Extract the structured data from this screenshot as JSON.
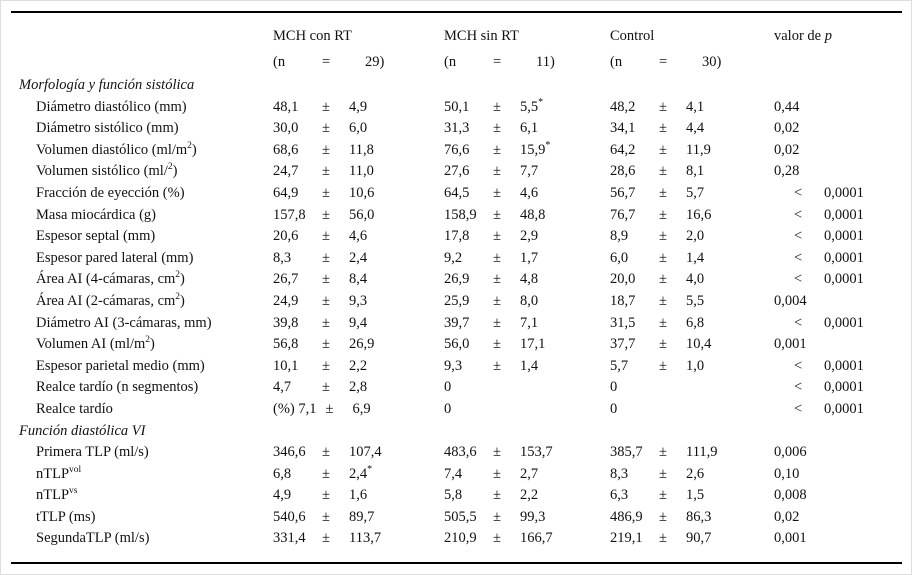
{
  "header": {
    "columns": [
      {
        "title": "MCH con RT",
        "n_open": "(n",
        "n_eq": "=",
        "n_val": "29)"
      },
      {
        "title": "MCH sin RT",
        "n_open": "(n",
        "n_eq": "=",
        "n_val": "11)"
      },
      {
        "title": "Control",
        "n_open": "(n",
        "n_eq": "=",
        "n_val": "30)"
      }
    ],
    "p_label_prefix": "valor de ",
    "p_label_italic": "p"
  },
  "table": {
    "rows": [
      {
        "type": "section",
        "label": "Morfología y función sistólica"
      },
      {
        "type": "data",
        "label": "Diámetro diastólico (mm)",
        "cells": [
          {
            "v1": "48,1",
            "pm": "±",
            "v2": "4,9",
            "sup": ""
          },
          {
            "v1": "50,1",
            "pm": "±",
            "v2": "5,5",
            "sup": "*"
          },
          {
            "v1": "48,2",
            "pm": "±",
            "v2": "4,1",
            "sup": ""
          }
        ],
        "p_lt": "",
        "p": "0,44"
      },
      {
        "type": "data",
        "label": "Diámetro sistólico (mm)",
        "cells": [
          {
            "v1": "30,0",
            "pm": "±",
            "v2": "6,0",
            "sup": ""
          },
          {
            "v1": "31,3",
            "pm": "±",
            "v2": "6,1",
            "sup": ""
          },
          {
            "v1": "34,1",
            "pm": "±",
            "v2": "4,4",
            "sup": ""
          }
        ],
        "p_lt": "",
        "p": "0,02"
      },
      {
        "type": "data",
        "label": "Volumen diastólico (ml/m^{2})",
        "cells": [
          {
            "v1": "68,6",
            "pm": "±",
            "v2": "11,8",
            "sup": ""
          },
          {
            "v1": "76,6",
            "pm": "±",
            "v2": "15,9",
            "sup": "*"
          },
          {
            "v1": "64,2",
            "pm": "±",
            "v2": "11,9",
            "sup": ""
          }
        ],
        "p_lt": "",
        "p": "0,02"
      },
      {
        "type": "data",
        "label": "Volumen sistólico (ml/^{2})",
        "cells": [
          {
            "v1": "24,7",
            "pm": "±",
            "v2": "11,0",
            "sup": ""
          },
          {
            "v1": "27,6",
            "pm": "±",
            "v2": "7,7",
            "sup": ""
          },
          {
            "v1": "28,6",
            "pm": "±",
            "v2": "8,1",
            "sup": ""
          }
        ],
        "p_lt": "",
        "p": "0,28"
      },
      {
        "type": "data",
        "label": "Fracción de eyección (%)",
        "cells": [
          {
            "v1": "64,9",
            "pm": "±",
            "v2": "10,6",
            "sup": ""
          },
          {
            "v1": "64,5",
            "pm": "±",
            "v2": "4,6",
            "sup": ""
          },
          {
            "v1": "56,7",
            "pm": "±",
            "v2": "5,7",
            "sup": ""
          }
        ],
        "p_lt": "<",
        "p": "0,0001"
      },
      {
        "type": "data",
        "label": "Masa miocárdica (g)",
        "cells": [
          {
            "v1": "157,8",
            "pm": "±",
            "v2": "56,0",
            "sup": ""
          },
          {
            "v1": "158,9",
            "pm": "±",
            "v2": "48,8",
            "sup": ""
          },
          {
            "v1": "76,7",
            "pm": "±",
            "v2": "16,6",
            "sup": ""
          }
        ],
        "p_lt": "<",
        "p": "0,0001"
      },
      {
        "type": "data",
        "label": "Espesor septal (mm)",
        "cells": [
          {
            "v1": "20,6",
            "pm": "±",
            "v2": "4,6",
            "sup": ""
          },
          {
            "v1": "17,8",
            "pm": "±",
            "v2": "2,9",
            "sup": ""
          },
          {
            "v1": "8,9",
            "pm": "±",
            "v2": "2,0",
            "sup": ""
          }
        ],
        "p_lt": "<",
        "p": "0,0001"
      },
      {
        "type": "data",
        "label": "Espesor pared lateral (mm)",
        "cells": [
          {
            "v1": "8,3",
            "pm": "±",
            "v2": "2,4",
            "sup": ""
          },
          {
            "v1": "9,2",
            "pm": "±",
            "v2": "1,7",
            "sup": ""
          },
          {
            "v1": "6,0",
            "pm": "±",
            "v2": "1,4",
            "sup": ""
          }
        ],
        "p_lt": "<",
        "p": "0,0001"
      },
      {
        "type": "data",
        "label": "Área AI (4-cámaras, cm^{2})",
        "cells": [
          {
            "v1": "26,7",
            "pm": "±",
            "v2": "8,4",
            "sup": ""
          },
          {
            "v1": "26,9",
            "pm": "±",
            "v2": "4,8",
            "sup": ""
          },
          {
            "v1": "20,0",
            "pm": "±",
            "v2": "4,0",
            "sup": ""
          }
        ],
        "p_lt": "<",
        "p": "0,0001"
      },
      {
        "type": "data",
        "label": "Área AI (2-cámaras, cm^{2})",
        "cells": [
          {
            "v1": "24,9",
            "pm": "±",
            "v2": "9,3",
            "sup": ""
          },
          {
            "v1": "25,9",
            "pm": "±",
            "v2": "8,0",
            "sup": ""
          },
          {
            "v1": "18,7",
            "pm": "±",
            "v2": "5,5",
            "sup": ""
          }
        ],
        "p_lt": "",
        "p": "0,004"
      },
      {
        "type": "data",
        "label": "Diámetro AI (3-cámaras, mm)",
        "cells": [
          {
            "v1": "39,8",
            "pm": "±",
            "v2": "9,4",
            "sup": ""
          },
          {
            "v1": "39,7",
            "pm": "±",
            "v2": "7,1",
            "sup": ""
          },
          {
            "v1": "31,5",
            "pm": "±",
            "v2": "6,8",
            "sup": ""
          }
        ],
        "p_lt": "<",
        "p": "0,0001"
      },
      {
        "type": "data",
        "label": "Volumen AI (ml/m^{2})",
        "cells": [
          {
            "v1": "56,8",
            "pm": "±",
            "v2": "26,9",
            "sup": ""
          },
          {
            "v1": "56,0",
            "pm": "±",
            "v2": "17,1",
            "sup": ""
          },
          {
            "v1": "37,7",
            "pm": "±",
            "v2": "10,4",
            "sup": ""
          }
        ],
        "p_lt": "",
        "p": "0,001"
      },
      {
        "type": "data",
        "label": "Espesor parietal medio (mm)",
        "cells": [
          {
            "v1": "10,1",
            "pm": "±",
            "v2": "2,2",
            "sup": ""
          },
          {
            "v1": "9,3",
            "pm": "±",
            "v2": "1,4",
            "sup": ""
          },
          {
            "v1": "5,7",
            "pm": "±",
            "v2": "1,0",
            "sup": ""
          }
        ],
        "p_lt": "<",
        "p": "0,0001"
      },
      {
        "type": "data",
        "label": "Realce tardío (n segmentos)",
        "cells": [
          {
            "v1": "4,7",
            "pm": "±",
            "v2": "2,8",
            "sup": ""
          },
          {
            "v1": "0",
            "pm": "",
            "v2": "",
            "sup": ""
          },
          {
            "v1": "0",
            "pm": "",
            "v2": "",
            "sup": ""
          }
        ],
        "p_lt": "<",
        "p": "0,0001"
      },
      {
        "type": "data",
        "label": "Realce tardío",
        "cells": [
          {
            "v1": "(%) 7,1",
            "pm": "±",
            "v2": "6,9",
            "sup": ""
          },
          {
            "v1": "0",
            "pm": "",
            "v2": "",
            "sup": ""
          },
          {
            "v1": "0",
            "pm": "",
            "v2": "",
            "sup": ""
          }
        ],
        "p_lt": "<",
        "p": "0,0001"
      },
      {
        "type": "section",
        "label": "Función diastólica VI"
      },
      {
        "type": "data",
        "label": "Primera TLP (ml/s)",
        "cells": [
          {
            "v1": "346,6",
            "pm": "±",
            "v2": "107,4",
            "sup": ""
          },
          {
            "v1": "483,6",
            "pm": "±",
            "v2": "153,7",
            "sup": ""
          },
          {
            "v1": "385,7",
            "pm": "±",
            "v2": "111,9",
            "sup": ""
          }
        ],
        "p_lt": "",
        "p": "0,006"
      },
      {
        "type": "data",
        "label": "nTLP^{vol}",
        "cells": [
          {
            "v1": "6,8",
            "pm": "±",
            "v2": "2,4",
            "sup": "*"
          },
          {
            "v1": "7,4",
            "pm": "±",
            "v2": "2,7",
            "sup": ""
          },
          {
            "v1": "8,3",
            "pm": "±",
            "v2": "2,6",
            "sup": ""
          }
        ],
        "p_lt": "",
        "p": "0,10"
      },
      {
        "type": "data",
        "label": "nTLP^{vs}",
        "cells": [
          {
            "v1": "4,9",
            "pm": "±",
            "v2": "1,6",
            "sup": ""
          },
          {
            "v1": "5,8",
            "pm": "±",
            "v2": "2,2",
            "sup": ""
          },
          {
            "v1": "6,3",
            "pm": "±",
            "v2": "1,5",
            "sup": ""
          }
        ],
        "p_lt": "",
        "p": "0,008"
      },
      {
        "type": "data",
        "label": "tTLP (ms)",
        "cells": [
          {
            "v1": "540,6",
            "pm": "±",
            "v2": "89,7",
            "sup": ""
          },
          {
            "v1": "505,5",
            "pm": "±",
            "v2": "99,3",
            "sup": ""
          },
          {
            "v1": "486,9",
            "pm": "±",
            "v2": "86,3",
            "sup": ""
          }
        ],
        "p_lt": "",
        "p": "0,02"
      },
      {
        "type": "data",
        "label": "SegundaTLP (ml/s)",
        "cells": [
          {
            "v1": "331,4",
            "pm": "±",
            "v2": "113,7",
            "sup": ""
          },
          {
            "v1": "210,9",
            "pm": "±",
            "v2": "166,7",
            "sup": ""
          },
          {
            "v1": "219,1",
            "pm": "±",
            "v2": "90,7",
            "sup": ""
          }
        ],
        "p_lt": "",
        "p": "0,001"
      }
    ]
  }
}
